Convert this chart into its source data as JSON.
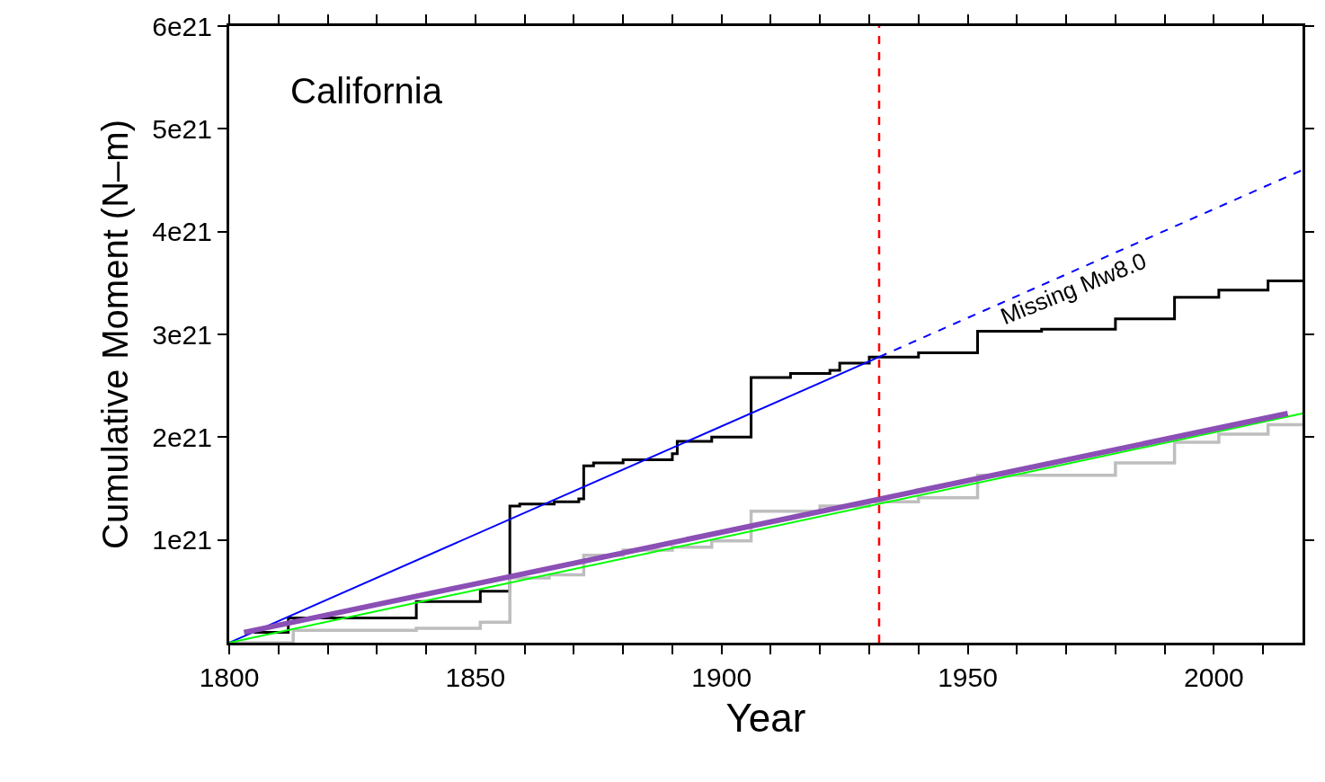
{
  "chart_data": {
    "type": "step",
    "xlabel": "Year",
    "ylabel": "Cumulative Moment (N–m)",
    "xlim": [
      1800,
      2018
    ],
    "ylim": [
      0,
      6e+21
    ],
    "xticks": [
      1800,
      {
        "value": 1810,
        "label": null
      },
      {
        "value": 1820,
        "label": null
      },
      {
        "value": 1830,
        "label": null
      },
      {
        "value": 1840,
        "label": null
      },
      1850,
      {
        "value": 1860,
        "label": null
      },
      {
        "value": 1870,
        "label": null
      },
      {
        "value": 1880,
        "label": null
      },
      {
        "value": 1890,
        "label": null
      },
      1900,
      {
        "value": 1910,
        "label": null
      },
      {
        "value": 1920,
        "label": null
      },
      {
        "value": 1930,
        "label": null
      },
      {
        "value": 1940,
        "label": null
      },
      1950,
      {
        "value": 1960,
        "label": null
      },
      {
        "value": 1970,
        "label": null
      },
      {
        "value": 1980,
        "label": null
      },
      {
        "value": 1990,
        "label": null
      },
      2000,
      {
        "value": 2010,
        "label": null
      }
    ],
    "yticks": [
      {
        "value": 1e+21,
        "label": "1e21"
      },
      {
        "value": 2e+21,
        "label": "2e21"
      },
      {
        "value": 3e+21,
        "label": "3e21"
      },
      {
        "value": 4e+21,
        "label": "4e21"
      },
      {
        "value": 5e+21,
        "label": "5e21"
      },
      {
        "value": 6e+21,
        "label": "6e21"
      }
    ],
    "series": [
      {
        "color": "#000000",
        "x": [
          1805,
          1812,
          1838,
          1851,
          1857,
          1859,
          1866,
          1871,
          1872,
          1874,
          1880,
          1890,
          1891,
          1898,
          1906,
          1914,
          1922,
          1924,
          1930,
          1940,
          1952,
          1965,
          1980,
          1992,
          2001,
          2011,
          2018
        ],
        "values": [
          1e+20,
          2.4e+20,
          4e+20,
          5e+20,
          1.33e+21,
          1.35e+21,
          1.37e+21,
          1.4e+21,
          1.72e+21,
          1.75e+21,
          1.78e+21,
          1.84e+21,
          1.96e+21,
          2e+21,
          2.58e+21,
          2.62e+21,
          2.65e+21,
          2.72e+21,
          2.78e+21,
          2.82e+21,
          3.03e+21,
          3.05e+21,
          3.15e+21,
          3.36e+21,
          3.43e+21,
          3.52e+21,
          3.52e+21
        ]
      },
      {
        "color": "#bebebe",
        "x": [
          1800,
          1813,
          1838,
          1851,
          1857,
          1865,
          1872,
          1880,
          1890,
          1898,
          1906,
          1920,
          1930,
          1940,
          1952,
          1980,
          1992,
          2001,
          2011,
          2018
        ],
        "values": [
          0.0,
          1.2e+20,
          1.4e+20,
          2e+20,
          6.3e+20,
          6.6e+20,
          8.5e+20,
          9e+20,
          9.3e+20,
          9.9e+20,
          1.28e+21,
          1.33e+21,
          1.37e+21,
          1.41e+21,
          1.63e+21,
          1.75e+21,
          1.95e+21,
          2.03e+21,
          2.12e+21,
          2.12e+21
        ]
      },
      {
        "type": "line",
        "color": "#0000ff",
        "line_style": "solid",
        "x": [
          1800,
          1932
        ],
        "values": [
          0.0,
          2.78e+21
        ]
      },
      {
        "type": "line",
        "color": "#0000ff",
        "line_style": "dashed",
        "x": [
          1932,
          2018
        ],
        "values": [
          2.78e+21,
          4.6e+21
        ]
      },
      {
        "type": "line",
        "color": "#00ff00",
        "line_style": "solid",
        "x": [
          1800,
          2018
        ],
        "values": [
          0.0,
          2.23e+21
        ]
      },
      {
        "type": "line",
        "color": "#8b4fb5",
        "line_style": "solid",
        "x": [
          1803,
          2015
        ],
        "values": [
          1e+20,
          2.23e+21
        ]
      }
    ],
    "ref_lines": [
      {
        "axis": "x",
        "value": 1932,
        "color": "#ff0000",
        "line_style": "dashed"
      }
    ],
    "annotations": [
      "California",
      "Missing Mw8.0"
    ],
    "grid": false,
    "legend": false
  }
}
